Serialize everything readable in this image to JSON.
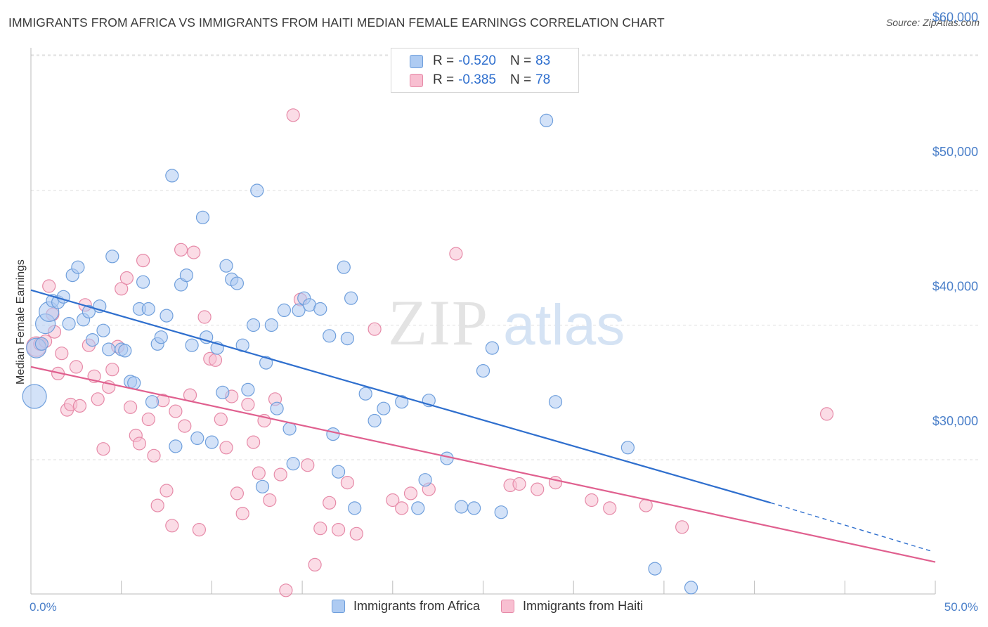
{
  "header": {
    "title": "IMMIGRANTS FROM AFRICA VS IMMIGRANTS FROM HAITI MEDIAN FEMALE EARNINGS CORRELATION CHART",
    "source": "Source: ZipAtlas.com"
  },
  "watermark": {
    "zip": "ZIP",
    "atlas": "atlas"
  },
  "legend": {
    "africa": {
      "r_label": "R =",
      "r_value": "-0.520",
      "n_label": "N =",
      "n_value": "83"
    },
    "haiti": {
      "r_label": "R =",
      "r_value": "-0.385",
      "n_label": "N =",
      "n_value": "78"
    }
  },
  "bottom_legend": {
    "africa": "Immigrants from Africa",
    "haiti": "Immigrants from Haiti"
  },
  "colors": {
    "africa_fill": "#aecbf2",
    "africa_stroke": "#6f9fdc",
    "africa_line": "#2f6fce",
    "haiti_fill": "#f8bfd1",
    "haiti_stroke": "#e68aa8",
    "haiti_line": "#e0608f",
    "axis_text": "#4a7fc9",
    "grid": "#dddddd"
  },
  "chart_data": {
    "type": "scatter",
    "title": "IMMIGRANTS FROM AFRICA VS IMMIGRANTS FROM HAITI MEDIAN FEMALE EARNINGS CORRELATION CHART",
    "xlabel": "",
    "ylabel": "Median Female Earnings",
    "xlim": [
      0,
      50
    ],
    "ylim": [
      20000,
      62000
    ],
    "x_tick_labels": [
      "0.0%",
      "50.0%"
    ],
    "y_ticks": [
      30000,
      40000,
      50000,
      60000
    ],
    "y_tick_labels": [
      "$30,000",
      "$40,000",
      "$50,000",
      "$60,000"
    ],
    "grid": true,
    "legend_position": "top-center",
    "series": [
      {
        "name": "Immigrants from Africa",
        "r": -0.52,
        "n": 83,
        "trend": {
          "x0": 0,
          "y0": 42600,
          "x1": 40.9,
          "y1": 26800,
          "dashed_to_x": 49.8,
          "dashed_to_y": 23200
        },
        "points": [
          [
            0.2,
            34700,
            "xl"
          ],
          [
            0.3,
            38300,
            "l"
          ],
          [
            0.6,
            38600
          ],
          [
            0.8,
            40100,
            "l"
          ],
          [
            1.0,
            41000,
            "l"
          ],
          [
            1.2,
            41800
          ],
          [
            1.5,
            41700
          ],
          [
            1.8,
            42100
          ],
          [
            2.1,
            40100
          ],
          [
            2.3,
            43700
          ],
          [
            2.6,
            44300
          ],
          [
            2.9,
            40400
          ],
          [
            3.2,
            41000
          ],
          [
            3.4,
            38900
          ],
          [
            3.8,
            41400
          ],
          [
            4.0,
            39600
          ],
          [
            4.3,
            38200
          ],
          [
            4.5,
            45100
          ],
          [
            5.0,
            38200
          ],
          [
            5.2,
            38100
          ],
          [
            5.5,
            35800
          ],
          [
            5.7,
            35700
          ],
          [
            6.0,
            41200
          ],
          [
            6.2,
            43200
          ],
          [
            6.5,
            41200
          ],
          [
            6.7,
            34300
          ],
          [
            7.0,
            38600
          ],
          [
            7.2,
            39100
          ],
          [
            7.5,
            40700
          ],
          [
            7.8,
            51100
          ],
          [
            8.0,
            31000
          ],
          [
            8.3,
            43000
          ],
          [
            8.6,
            43700
          ],
          [
            8.9,
            38500
          ],
          [
            9.2,
            31600
          ],
          [
            9.5,
            48000
          ],
          [
            9.7,
            39100
          ],
          [
            10.0,
            31300
          ],
          [
            10.3,
            38300
          ],
          [
            10.6,
            35000
          ],
          [
            10.8,
            44400
          ],
          [
            11.1,
            43400
          ],
          [
            11.4,
            43100
          ],
          [
            11.7,
            38500
          ],
          [
            12.0,
            35200
          ],
          [
            12.3,
            40000
          ],
          [
            12.5,
            50000
          ],
          [
            12.8,
            28000
          ],
          [
            13.0,
            37200
          ],
          [
            13.3,
            40000
          ],
          [
            13.6,
            33800
          ],
          [
            14.0,
            41100
          ],
          [
            14.3,
            32300
          ],
          [
            14.5,
            29700
          ],
          [
            14.8,
            41100
          ],
          [
            15.1,
            42000
          ],
          [
            15.4,
            41500
          ],
          [
            16.0,
            41200
          ],
          [
            16.5,
            39200
          ],
          [
            16.7,
            31900
          ],
          [
            17.0,
            29100
          ],
          [
            17.3,
            44300
          ],
          [
            17.5,
            39000
          ],
          [
            17.7,
            42000
          ],
          [
            17.9,
            26400
          ],
          [
            18.5,
            34900
          ],
          [
            19.0,
            32900
          ],
          [
            19.5,
            33800
          ],
          [
            20.5,
            34300
          ],
          [
            21.4,
            26400
          ],
          [
            21.8,
            28500
          ],
          [
            22.0,
            34400
          ],
          [
            23.0,
            30100
          ],
          [
            23.8,
            26500
          ],
          [
            24.5,
            26400
          ],
          [
            25.0,
            36600
          ],
          [
            25.5,
            38300
          ],
          [
            26.0,
            26100
          ],
          [
            28.5,
            55200
          ],
          [
            29.0,
            34300
          ],
          [
            33.0,
            30900
          ],
          [
            34.5,
            21900
          ],
          [
            36.5,
            20500
          ]
        ]
      },
      {
        "name": "Immigrants from Haiti",
        "r": -0.385,
        "n": 78,
        "trend": {
          "x0": 0,
          "y0": 36900,
          "x1": 50,
          "y1": 22400
        },
        "points": [
          [
            0.3,
            38400,
            "l"
          ],
          [
            0.5,
            38600
          ],
          [
            0.8,
            38800
          ],
          [
            1.0,
            42900
          ],
          [
            1.3,
            39500
          ],
          [
            1.5,
            36400
          ],
          [
            1.7,
            37900
          ],
          [
            2.0,
            33700
          ],
          [
            2.2,
            34100
          ],
          [
            2.5,
            36900
          ],
          [
            2.7,
            34000
          ],
          [
            3.0,
            41500
          ],
          [
            3.2,
            38500
          ],
          [
            3.5,
            36200
          ],
          [
            3.7,
            34500
          ],
          [
            4.0,
            30800
          ],
          [
            4.3,
            35400
          ],
          [
            4.5,
            36700
          ],
          [
            4.8,
            38400
          ],
          [
            5.0,
            42700
          ],
          [
            5.3,
            43500
          ],
          [
            5.5,
            33900
          ],
          [
            5.8,
            31800
          ],
          [
            6.0,
            31200
          ],
          [
            6.2,
            44800
          ],
          [
            6.5,
            33000
          ],
          [
            6.8,
            30300
          ],
          [
            7.0,
            26600
          ],
          [
            7.3,
            34400
          ],
          [
            7.5,
            27700
          ],
          [
            7.8,
            25100
          ],
          [
            8.0,
            33600
          ],
          [
            8.3,
            45600
          ],
          [
            8.5,
            32500
          ],
          [
            8.8,
            34800
          ],
          [
            9.0,
            45400
          ],
          [
            9.3,
            24800
          ],
          [
            9.6,
            40600
          ],
          [
            9.9,
            37500
          ],
          [
            10.2,
            37400
          ],
          [
            10.5,
            33000
          ],
          [
            10.8,
            30900
          ],
          [
            11.1,
            34700
          ],
          [
            11.4,
            27500
          ],
          [
            11.7,
            26000
          ],
          [
            12.0,
            34100
          ],
          [
            12.3,
            31300
          ],
          [
            12.6,
            29000
          ],
          [
            12.9,
            32900
          ],
          [
            13.2,
            27000
          ],
          [
            13.5,
            34500
          ],
          [
            13.8,
            28900
          ],
          [
            14.1,
            20300
          ],
          [
            14.5,
            55600
          ],
          [
            14.9,
            41900
          ],
          [
            15.3,
            29600
          ],
          [
            15.7,
            22200
          ],
          [
            16.0,
            24900
          ],
          [
            16.5,
            26800
          ],
          [
            17.0,
            24800
          ],
          [
            17.5,
            28300
          ],
          [
            18.0,
            24500
          ],
          [
            19.0,
            39700
          ],
          [
            20.0,
            27000
          ],
          [
            20.5,
            26400
          ],
          [
            21.0,
            27500
          ],
          [
            22.0,
            27800
          ],
          [
            23.5,
            45300
          ],
          [
            26.5,
            28100
          ],
          [
            27.0,
            28200
          ],
          [
            28.0,
            27800
          ],
          [
            29.0,
            28300
          ],
          [
            31.0,
            27000
          ],
          [
            32.0,
            26400
          ],
          [
            34.0,
            26600
          ],
          [
            36.0,
            25000
          ],
          [
            44.0,
            33400
          ],
          [
            1.2,
            40800
          ]
        ]
      }
    ]
  }
}
